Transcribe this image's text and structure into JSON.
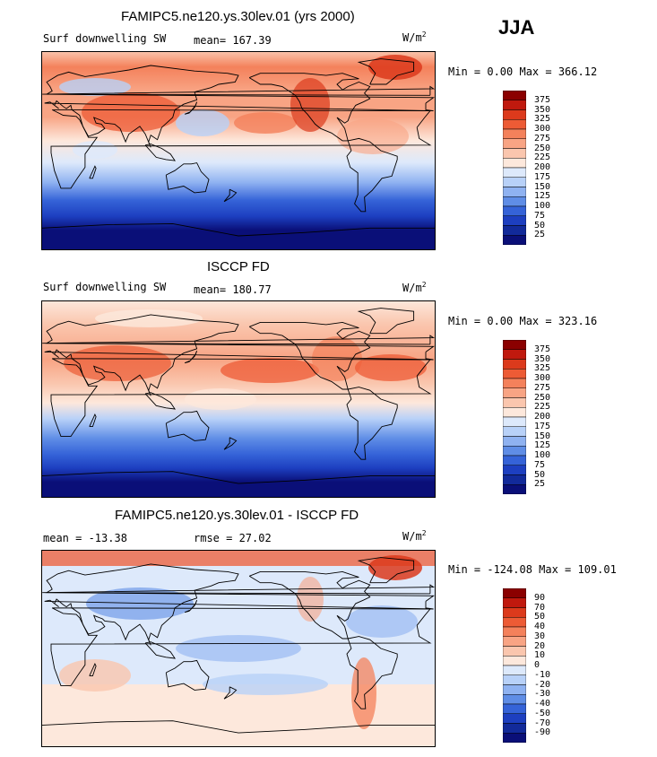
{
  "season": "JJA",
  "units_base": "W/m",
  "units_exp": "2",
  "panels": [
    {
      "title": "FAMIPC5.ne120.ys.30lev.01 (yrs 2000)",
      "left_label": "Surf downwelling SW",
      "stat1": "mean= 167.39",
      "stat2": "",
      "minmax": "Min =   0.00 Max = 366.12",
      "colorbar": {
        "labels": [
          "375",
          "350",
          "325",
          "300",
          "275",
          "250",
          "225",
          "200",
          "175",
          "150",
          "125",
          "100",
          "75",
          "50",
          "25"
        ],
        "colors": [
          "#8b0000",
          "#c0190e",
          "#dc3a1c",
          "#ed5b35",
          "#f4815b",
          "#f8a484",
          "#fac6ae",
          "#fde8dc",
          "#dde9fb",
          "#b8d1f8",
          "#8fb2f1",
          "#5f8de6",
          "#3563d8",
          "#1d3fc0",
          "#122a9a",
          "#0a0f78"
        ]
      },
      "palette": "pos"
    },
    {
      "title": "ISCCP FD",
      "left_label": "Surf downwelling SW",
      "stat1": "mean= 180.77",
      "stat2": "",
      "minmax": "Min =   0.00 Max = 323.16",
      "colorbar": {
        "labels": [
          "375",
          "350",
          "325",
          "300",
          "275",
          "250",
          "225",
          "200",
          "175",
          "150",
          "125",
          "100",
          "75",
          "50",
          "25"
        ],
        "colors": [
          "#8b0000",
          "#c0190e",
          "#dc3a1c",
          "#ed5b35",
          "#f4815b",
          "#f8a484",
          "#fac6ae",
          "#fde8dc",
          "#dde9fb",
          "#b8d1f8",
          "#8fb2f1",
          "#5f8de6",
          "#3563d8",
          "#1d3fc0",
          "#122a9a",
          "#0a0f78"
        ]
      },
      "palette": "pos"
    },
    {
      "title": "FAMIPC5.ne120.ys.30lev.01 - ISCCP FD",
      "left_label": "mean = -13.38",
      "stat1": "",
      "stat2": "rmse =  27.02",
      "minmax": "Min = -124.08 Max = 109.01",
      "colorbar": {
        "labels": [
          "90",
          "70",
          "50",
          "40",
          "30",
          "20",
          "10",
          "0",
          "-10",
          "-20",
          "-30",
          "-40",
          "-50",
          "-70",
          "-90"
        ],
        "colors": [
          "#8b0000",
          "#c0190e",
          "#dc3a1c",
          "#ed5b35",
          "#f4815b",
          "#f8a484",
          "#fac6ae",
          "#fde8dc",
          "#dde9fb",
          "#b8d1f8",
          "#8fb2f1",
          "#5f8de6",
          "#3563d8",
          "#1d3fc0",
          "#122a9a",
          "#0a0f78"
        ]
      },
      "palette": "diff"
    }
  ]
}
